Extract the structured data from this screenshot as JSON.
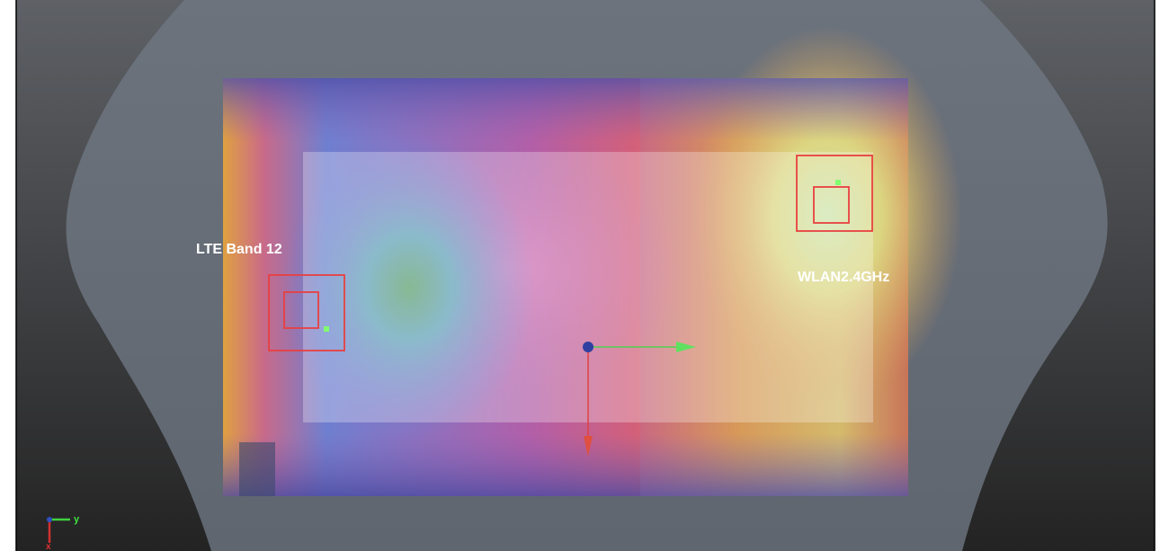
{
  "annotations": {
    "left_label": "LTE Band 12",
    "right_label": "WLAN2.4GHz"
  },
  "triad": {
    "y_axis": "y",
    "x_axis": "x"
  }
}
